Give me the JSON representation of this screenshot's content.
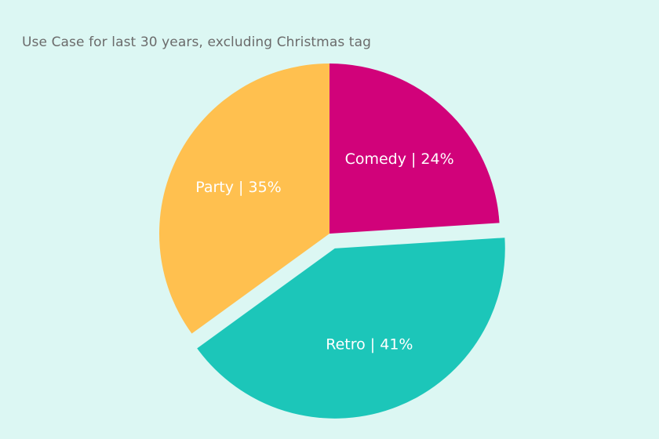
{
  "chart_data": {
    "type": "pie",
    "title": "Use Case for last 30 years, excluding Christmas tag",
    "slices": [
      {
        "name": "Comedy",
        "value": 24,
        "label": "Comedy | 24%",
        "color": "#d1027a",
        "exploded": false
      },
      {
        "name": "Retro",
        "value": 41,
        "label": "Retro | 41%",
        "color": "#1cc6b9",
        "exploded": true
      },
      {
        "name": "Party",
        "value": 35,
        "label": "Party | 35%",
        "color": "#ffc04f",
        "exploded": false
      }
    ],
    "legend": "none",
    "grid": false
  }
}
